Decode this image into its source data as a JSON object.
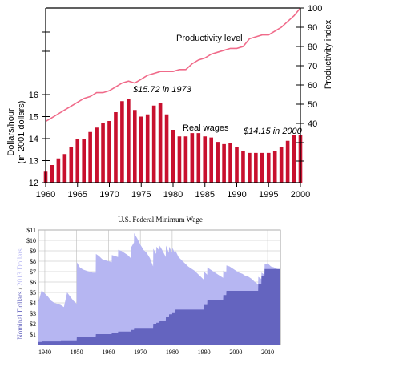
{
  "chart_data": [
    {
      "type": "bar",
      "left_axis_label_line1": "Dollars/hour",
      "left_axis_label_line2": "(in 2001 dollars)",
      "right_axis_label": "Productivity index",
      "xlim": [
        1960,
        2000
      ],
      "x_ticks": [
        1960,
        1965,
        1970,
        1975,
        1980,
        1985,
        1990,
        1995,
        2000
      ],
      "y_left_lim": [
        12,
        16.8
      ],
      "y_left_ticks": [
        12,
        13,
        14,
        15,
        16
      ],
      "y_right_ticks": [
        40,
        50,
        60,
        70,
        80,
        90,
        100
      ],
      "productivity_line": {
        "name": "Productivity level",
        "color": "#f06b8a",
        "x": [
          1960,
          1961,
          1962,
          1963,
          1964,
          1965,
          1966,
          1967,
          1968,
          1969,
          1970,
          1971,
          1972,
          1973,
          1974,
          1975,
          1976,
          1977,
          1978,
          1979,
          1980,
          1981,
          1982,
          1983,
          1984,
          1985,
          1986,
          1987,
          1988,
          1989,
          1990,
          1991,
          1992,
          1993,
          1994,
          1995,
          1996,
          1997,
          1998,
          1999,
          2000
        ],
        "values": [
          41,
          43,
          45,
          47,
          49,
          51,
          53,
          54,
          56,
          56,
          57,
          59,
          61,
          62,
          61,
          63,
          65,
          66,
          67,
          67,
          67,
          68,
          68,
          71,
          73,
          74,
          76,
          77,
          78,
          79,
          79,
          80,
          84,
          85,
          86,
          86,
          88,
          90,
          93,
          96,
          100
        ]
      },
      "real_wages": {
        "name": "Real wages",
        "color": "#c8102e",
        "x": [
          1960,
          1961,
          1962,
          1963,
          1964,
          1965,
          1966,
          1967,
          1968,
          1969,
          1970,
          1971,
          1972,
          1973,
          1974,
          1975,
          1976,
          1977,
          1978,
          1979,
          1980,
          1981,
          1982,
          1983,
          1984,
          1985,
          1986,
          1987,
          1988,
          1989,
          1990,
          1991,
          1992,
          1993,
          1994,
          1995,
          1996,
          1997,
          1998,
          1999,
          2000
        ],
        "values": [
          12.5,
          12.8,
          13.1,
          13.3,
          13.6,
          14.0,
          14.0,
          14.3,
          14.5,
          14.7,
          14.8,
          15.2,
          15.7,
          15.8,
          15.3,
          15.0,
          15.1,
          15.5,
          15.6,
          15.1,
          14.4,
          14.1,
          14.1,
          14.25,
          14.25,
          14.1,
          14.05,
          13.85,
          13.75,
          13.8,
          13.6,
          13.45,
          13.35,
          13.35,
          13.35,
          13.35,
          13.45,
          13.6,
          13.9,
          14.15,
          14.15
        ]
      },
      "annotations": [
        {
          "text": "$15.72 in 1973"
        },
        {
          "text": "$14.15 in 2000"
        }
      ]
    },
    {
      "type": "area",
      "title": "U.S. Federal Minimum Wage",
      "ylabel_part1": "Nominal Dollars",
      "ylabel_sep": "/",
      "ylabel_part2": "2013 Dollars",
      "xlim": [
        1938,
        2014
      ],
      "ylim": [
        0,
        11
      ],
      "y_ticks": [
        "$1",
        "$2",
        "$3",
        "$4",
        "$5",
        "$6",
        "$7",
        "$8",
        "$9",
        "$10",
        "$11"
      ],
      "x_ticks": [
        1940,
        1950,
        1960,
        1970,
        1980,
        1990,
        2000,
        2010
      ],
      "series": [
        {
          "color": "#b6b6f2",
          "x": [
            1938,
            1939,
            1940,
            1941,
            1942,
            1943,
            1944,
            1945,
            1946,
            1947,
            1948,
            1949,
            1950,
            1950.05,
            1951,
            1952,
            1953,
            1954,
            1955,
            1956,
            1956.05,
            1957,
            1958,
            1959,
            1960,
            1961,
            1961.05,
            1962,
            1963,
            1963.05,
            1964,
            1965,
            1966,
            1967,
            1967.05,
            1968,
            1968.05,
            1969,
            1970,
            1971,
            1972,
            1973,
            1974,
            1974.05,
            1975,
            1975.05,
            1976,
            1976.05,
            1977,
            1978,
            1978.05,
            1979,
            1979.05,
            1980,
            1980.05,
            1981,
            1981.05,
            1982,
            1983,
            1984,
            1985,
            1986,
            1987,
            1988,
            1989,
            1990,
            1990.05,
            1991,
            1991.05,
            1992,
            1993,
            1994,
            1995,
            1996,
            1996.05,
            1997,
            1997.05,
            1998,
            1999,
            2000,
            2001,
            2002,
            2003,
            2004,
            2005,
            2006,
            2007,
            2007.05,
            2008,
            2008.05,
            2009,
            2009.05,
            2010,
            2011,
            2012,
            2013,
            2014
          ],
          "values": [
            4.1,
            5.2,
            4.9,
            4.6,
            4.2,
            4.0,
            3.9,
            3.8,
            3.6,
            5.0,
            4.6,
            4.2,
            3.9,
            7.9,
            7.4,
            7.2,
            7.1,
            7.0,
            6.9,
            6.9,
            8.7,
            8.5,
            8.2,
            8.1,
            8.0,
            7.9,
            8.6,
            8.5,
            8.4,
            9.1,
            9.0,
            8.8,
            8.6,
            8.3,
            9.3,
            9.8,
            10.7,
            10.2,
            9.6,
            9.1,
            8.8,
            8.3,
            7.5,
            9.2,
            8.7,
            9.4,
            9.0,
            9.5,
            9.0,
            8.4,
            9.5,
            8.8,
            9.4,
            8.8,
            9.3,
            8.7,
            9.0,
            8.4,
            8.1,
            7.8,
            7.5,
            7.3,
            7.1,
            6.8,
            6.5,
            6.2,
            7.0,
            6.7,
            7.4,
            7.2,
            7.0,
            6.8,
            6.6,
            6.4,
            7.1,
            6.9,
            7.6,
            7.5,
            7.3,
            7.1,
            6.9,
            6.8,
            6.6,
            6.5,
            6.3,
            6.0,
            5.8,
            6.5,
            6.3,
            6.9,
            6.7,
            7.7,
            7.8,
            7.5,
            7.4,
            7.25,
            7.2
          ]
        },
        {
          "color": "#6464bf",
          "x": [
            1938,
            1939,
            1939.05,
            1945,
            1945.05,
            1950,
            1950.05,
            1956,
            1956.05,
            1961,
            1961.05,
            1963,
            1963.05,
            1967,
            1967.05,
            1968,
            1968.05,
            1974,
            1974.05,
            1975,
            1975.05,
            1976,
            1976.05,
            1978,
            1978.05,
            1979,
            1979.05,
            1980,
            1980.05,
            1981,
            1981.05,
            1990,
            1990.05,
            1991,
            1991.05,
            1996,
            1996.05,
            1997,
            1997.05,
            2007,
            2007.05,
            2008,
            2008.05,
            2009,
            2009.05,
            2014
          ],
          "values": [
            0.25,
            0.25,
            0.3,
            0.3,
            0.4,
            0.4,
            0.75,
            0.75,
            1.0,
            1.0,
            1.15,
            1.15,
            1.25,
            1.25,
            1.4,
            1.4,
            1.6,
            1.6,
            2.0,
            2.0,
            2.1,
            2.1,
            2.3,
            2.3,
            2.65,
            2.65,
            2.9,
            2.9,
            3.1,
            3.1,
            3.35,
            3.35,
            3.8,
            3.8,
            4.25,
            4.25,
            4.75,
            4.75,
            5.15,
            5.15,
            5.85,
            5.85,
            6.55,
            6.55,
            7.25,
            7.25
          ]
        }
      ]
    }
  ]
}
